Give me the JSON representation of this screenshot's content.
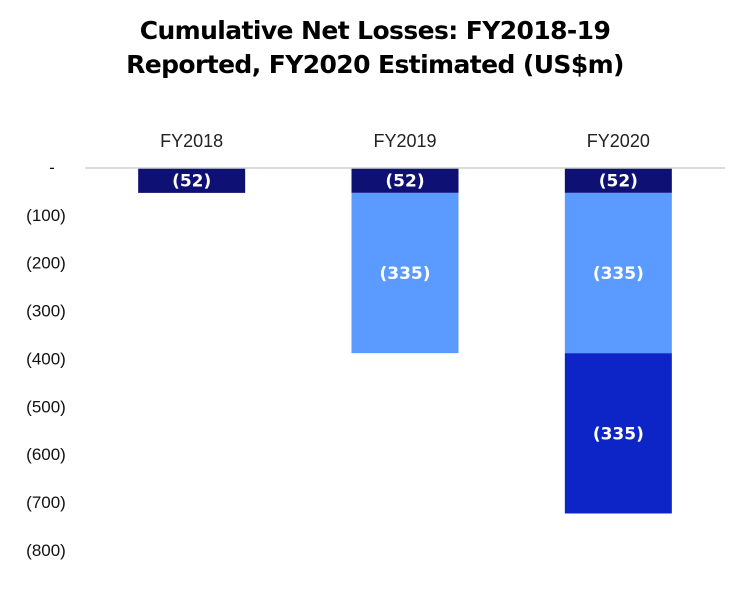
{
  "chart_data": {
    "type": "bar",
    "stacked": true,
    "title_lines": [
      "Cumulative Net Losses: FY2018-19",
      "Reported, FY2020 Estimated (US$m)"
    ],
    "categories": [
      "FY2018",
      "FY2019",
      "FY2020"
    ],
    "series": [
      {
        "values": [
          -52,
          -52,
          -52
        ],
        "color": "#0f1073",
        "labels": [
          "(52)",
          "(52)",
          "(52)"
        ]
      },
      {
        "values": [
          0,
          -335,
          -335
        ],
        "color": "#5b9bff",
        "labels": [
          "",
          "(335)",
          "(335)"
        ]
      },
      {
        "values": [
          0,
          0,
          -335
        ],
        "color": "#0d24c6",
        "labels": [
          "",
          "",
          "(335)"
        ]
      }
    ],
    "y_ticks": [
      {
        "value": 0,
        "label": "-"
      },
      {
        "value": -100,
        "label": "(100)"
      },
      {
        "value": -200,
        "label": "(200)"
      },
      {
        "value": -300,
        "label": "(300)"
      },
      {
        "value": -400,
        "label": "(400)"
      },
      {
        "value": -500,
        "label": "(500)"
      },
      {
        "value": -600,
        "label": "(600)"
      },
      {
        "value": -700,
        "label": "(700)"
      },
      {
        "value": -800,
        "label": "(800)"
      }
    ],
    "ylim": [
      -800,
      0
    ],
    "category_axis_position": "top",
    "grid": false,
    "legend": "none"
  }
}
